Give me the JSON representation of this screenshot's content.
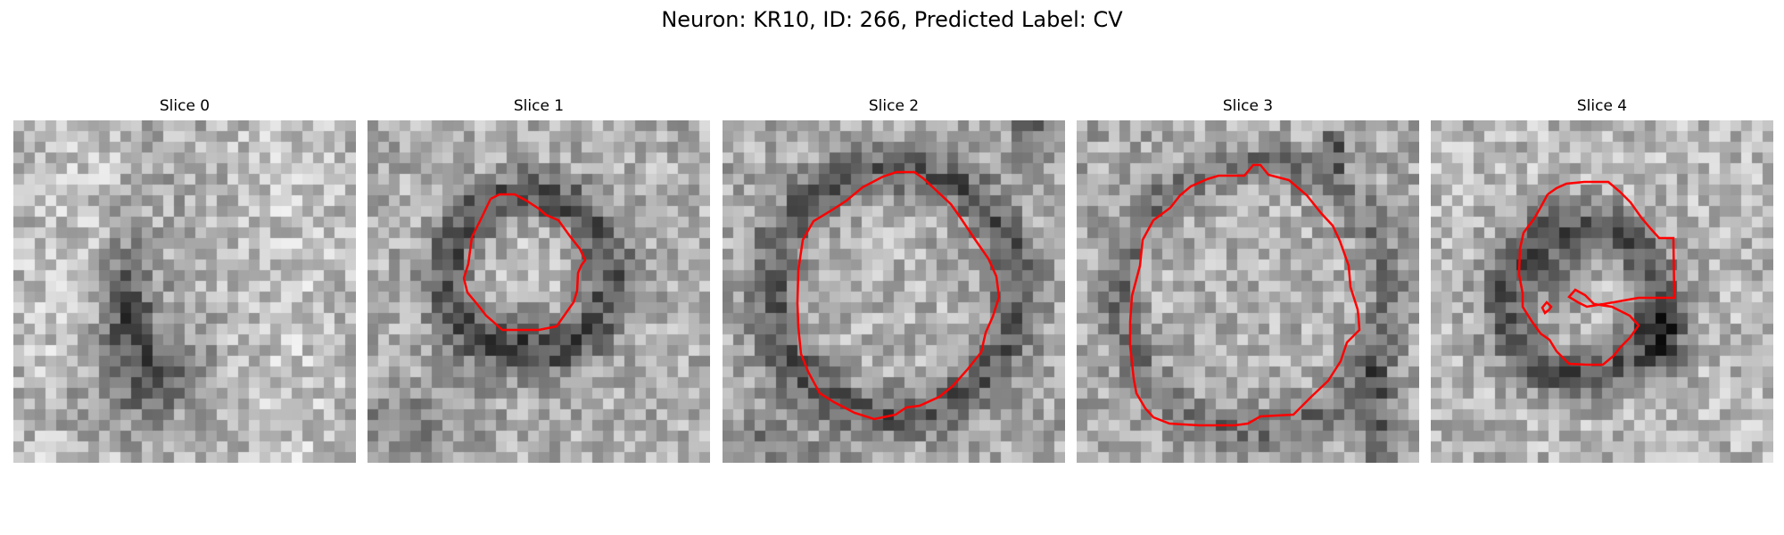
{
  "figure": {
    "title": "Neuron: KR10, ID: 266, Predicted Label: CV",
    "contour_color": "#ff0000"
  },
  "panels": [
    {
      "title": "Slice 0",
      "has_contour": false
    },
    {
      "title": "Slice 1",
      "has_contour": true
    },
    {
      "title": "Slice 2",
      "has_contour": true
    },
    {
      "title": "Slice 3",
      "has_contour": true
    },
    {
      "title": "Slice 4",
      "has_contour": true
    }
  ]
}
